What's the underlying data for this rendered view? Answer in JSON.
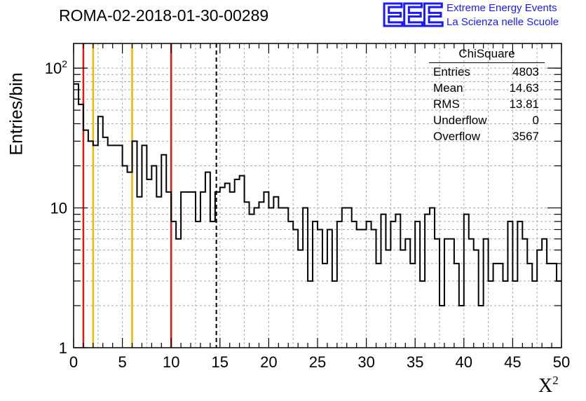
{
  "header": {
    "title": "ROMA-02-2018-01-30-00289",
    "logo_text": "EEE",
    "logo_line1": "Extreme Energy Events",
    "logo_line2": "La Scienza nelle Scuole"
  },
  "stats": {
    "title": "ChiSquare",
    "rows": [
      {
        "label": "Entries",
        "value": "4803"
      },
      {
        "label": "Mean",
        "value": "14.63"
      },
      {
        "label": "RMS",
        "value": "13.81"
      },
      {
        "label": "Underflow",
        "value": "0"
      },
      {
        "label": "Overflow",
        "value": "3567"
      }
    ]
  },
  "colors": {
    "red_line": "#e3170f",
    "orange_line": "#f5b800",
    "histogram": "#000000",
    "grid": "#aaaaaa",
    "logo": "#1a1aff"
  },
  "chart_data": {
    "type": "histogram",
    "ylabel": "Entries/bin",
    "xlabel": "X",
    "xlabel_sup": "2",
    "xlim": [
      0,
      50
    ],
    "ylim": [
      1,
      150
    ],
    "y_scale": "log",
    "grid": true,
    "bin_width": 0.5,
    "x_ticks": [
      "0",
      "5",
      "10",
      "15",
      "20",
      "25",
      "30",
      "35",
      "40",
      "45",
      "50"
    ],
    "y_ticks": [
      {
        "value": 1,
        "label": "1"
      },
      {
        "value": 10,
        "label": "10"
      },
      {
        "value": 100,
        "label": "10",
        "sup": "2"
      }
    ],
    "values": [
      77,
      55,
      36,
      30,
      28,
      45,
      32,
      28,
      28,
      28,
      20,
      18,
      30,
      12,
      28,
      16,
      20,
      12,
      24,
      13,
      8,
      6,
      13,
      13,
      13,
      8,
      13,
      18,
      8,
      13,
      14,
      15,
      13,
      16,
      17,
      11,
      9,
      10,
      11,
      13,
      10,
      12,
      10,
      10,
      8,
      7,
      5,
      10,
      3,
      8,
      7,
      4,
      7,
      3,
      8,
      10,
      10,
      8,
      7,
      7,
      8,
      7,
      4,
      9,
      5,
      8,
      9,
      5,
      6,
      4,
      8,
      3,
      9,
      10,
      6,
      2,
      6,
      6,
      4,
      2,
      9,
      6,
      5,
      2,
      6,
      3,
      4,
      4,
      3,
      8,
      3,
      8,
      6,
      4,
      3,
      5,
      6,
      4,
      4,
      3
    ],
    "vertical_lines": [
      {
        "x": 1,
        "color": "red",
        "style": "solid"
      },
      {
        "x": 2,
        "color": "orange",
        "style": "solid"
      },
      {
        "x": 6,
        "color": "orange",
        "style": "solid"
      },
      {
        "x": 10,
        "color": "red",
        "style": "solid"
      },
      {
        "x": 14.63,
        "color": "black",
        "style": "dashed"
      }
    ],
    "legend_position": "top-right"
  }
}
